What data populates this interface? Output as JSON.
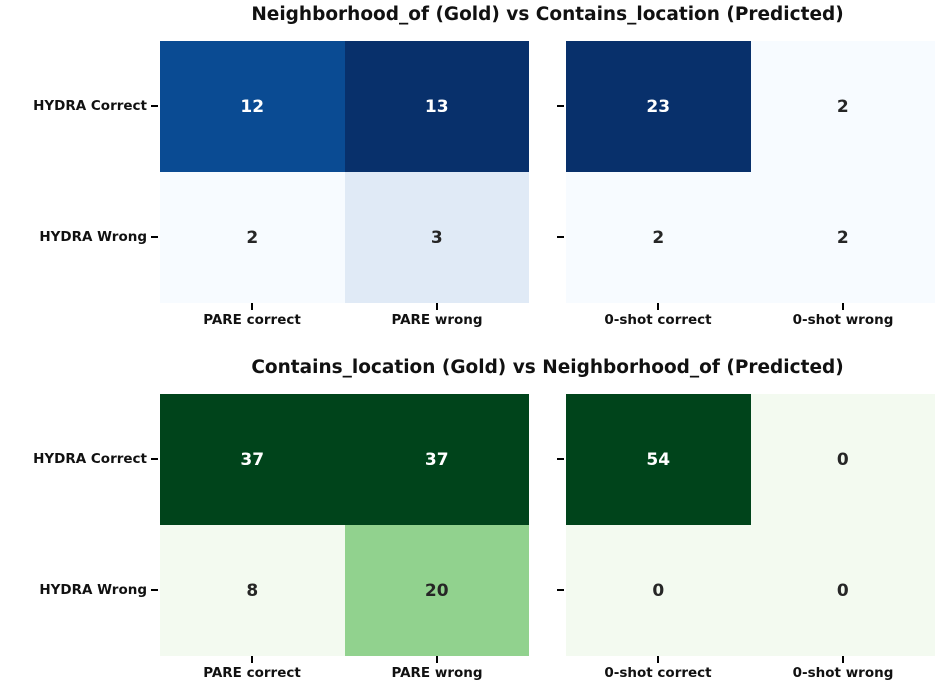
{
  "style": {
    "background": "#ffffff",
    "title_color": "#111111",
    "label_color": "#111111",
    "tick_color": "#000000",
    "blues_max": "#08306b",
    "blues_min": "#f7fbff",
    "greens_max": "#00441b",
    "greens_min": "#f3faf0"
  },
  "chart_data": [
    {
      "type": "heatmap",
      "title": "Neighborhood_of (Gold) vs Contains_location (Predicted)",
      "colormap": "Blues",
      "row_labels": [
        "HYDRA Correct",
        "HYDRA Wrong"
      ],
      "panels": [
        {
          "col_labels": [
            "PARE correct",
            "PARE wrong"
          ],
          "values": [
            [
              12,
              13
            ],
            [
              2,
              3
            ]
          ],
          "cell_colors": [
            [
              "#0a4b93",
              "#08306b"
            ],
            [
              "#f7fbff",
              "#e0eaf6"
            ]
          ],
          "text_colors": [
            [
              "#ffffff",
              "#ffffff"
            ],
            [
              "#262626",
              "#262626"
            ]
          ]
        },
        {
          "col_labels": [
            "0-shot correct",
            "0-shot wrong"
          ],
          "values": [
            [
              23,
              2
            ],
            [
              2,
              2
            ]
          ],
          "cell_colors": [
            [
              "#08306b",
              "#f7fbff"
            ],
            [
              "#f7fbff",
              "#f7fbff"
            ]
          ],
          "text_colors": [
            [
              "#ffffff",
              "#262626"
            ],
            [
              "#262626",
              "#262626"
            ]
          ]
        }
      ]
    },
    {
      "type": "heatmap",
      "title": "Contains_location (Gold) vs Neighborhood_of (Predicted)",
      "colormap": "Greens",
      "row_labels": [
        "HYDRA Correct",
        "HYDRA Wrong"
      ],
      "panels": [
        {
          "col_labels": [
            "PARE correct",
            "PARE wrong"
          ],
          "values": [
            [
              37,
              37
            ],
            [
              8,
              20
            ]
          ],
          "cell_colors": [
            [
              "#00441b",
              "#00441b"
            ],
            [
              "#f3faf0",
              "#91d28e"
            ]
          ],
          "text_colors": [
            [
              "#ffffff",
              "#ffffff"
            ],
            [
              "#262626",
              "#262626"
            ]
          ]
        },
        {
          "col_labels": [
            "0-shot correct",
            "0-shot wrong"
          ],
          "values": [
            [
              54,
              0
            ],
            [
              0,
              0
            ]
          ],
          "cell_colors": [
            [
              "#00441b",
              "#f3faf0"
            ],
            [
              "#f3faf0",
              "#f3faf0"
            ]
          ],
          "text_colors": [
            [
              "#ffffff",
              "#262626"
            ],
            [
              "#262626",
              "#262626"
            ]
          ]
        }
      ]
    }
  ]
}
